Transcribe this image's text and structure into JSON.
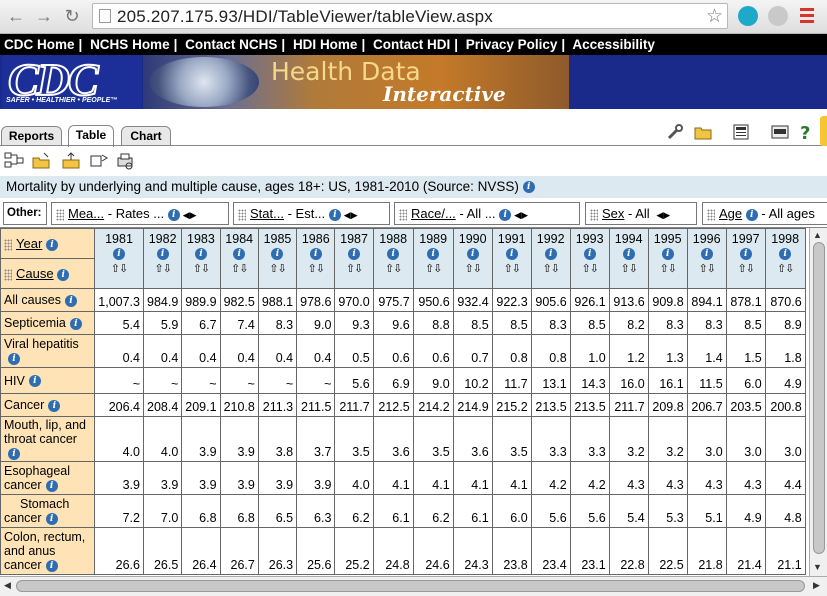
{
  "browser": {
    "url": "205.207.175.93/HDI/TableViewer/tableView.aspx"
  },
  "topnav": [
    "CDC Home",
    "NCHS Home",
    "Contact NCHS",
    "HDI Home",
    "Contact HDI",
    "Privacy Policy",
    "Accessibility"
  ],
  "banner": {
    "logo": "CDC",
    "logo_tagline": "SAFER • HEALTHIER • PEOPLE™",
    "title": "Health Data",
    "subtitle": "Interactive"
  },
  "tabs": [
    "Reports",
    "Table",
    "Chart"
  ],
  "title": "Mortality by underlying and multiple cause, ages 18+: US, 1981-2010 (Source: NVSS)",
  "other": {
    "label": "Other:",
    "dims": [
      {
        "name": "Mea...",
        "value": "Rates ..."
      },
      {
        "name": "Stat...",
        "value": "Est..."
      },
      {
        "name": "Race/...",
        "value": "All ..."
      },
      {
        "name": "Sex",
        "value": "All"
      },
      {
        "name": "Age",
        "value": "All ages"
      }
    ]
  },
  "table": {
    "year_label": "Year",
    "cause_label": "Cause",
    "years": [
      "1981",
      "1982",
      "1983",
      "1984",
      "1985",
      "1986",
      "1987",
      "1988",
      "1989",
      "1990",
      "1991",
      "1992",
      "1993",
      "1994",
      "1995",
      "1996",
      "1997",
      "1998"
    ],
    "rows": [
      {
        "label": "All causes",
        "values": [
          "1,007.3",
          "984.9",
          "989.9",
          "982.5",
          "988.1",
          "978.6",
          "970.0",
          "975.7",
          "950.6",
          "932.4",
          "922.3",
          "905.6",
          "926.1",
          "913.6",
          "909.8",
          "894.1",
          "878.1",
          "870.6"
        ]
      },
      {
        "label": "Septicemia",
        "values": [
          "5.4",
          "5.9",
          "6.7",
          "7.4",
          "8.3",
          "9.0",
          "9.3",
          "9.6",
          "8.8",
          "8.5",
          "8.5",
          "8.3",
          "8.5",
          "8.2",
          "8.3",
          "8.3",
          "8.5",
          "8.9"
        ]
      },
      {
        "label": "Viral hepatitis",
        "values": [
          "0.4",
          "0.4",
          "0.4",
          "0.4",
          "0.4",
          "0.4",
          "0.5",
          "0.6",
          "0.6",
          "0.7",
          "0.8",
          "0.8",
          "1.0",
          "1.2",
          "1.3",
          "1.4",
          "1.5",
          "1.8"
        ]
      },
      {
        "label": "HIV",
        "values": [
          "~",
          "~",
          "~",
          "~",
          "~",
          "~",
          "5.6",
          "6.9",
          "9.0",
          "10.2",
          "11.7",
          "13.1",
          "14.3",
          "16.0",
          "16.1",
          "11.5",
          "6.0",
          "4.9"
        ]
      },
      {
        "label": "Cancer",
        "values": [
          "206.4",
          "208.4",
          "209.1",
          "210.8",
          "211.3",
          "211.5",
          "211.7",
          "212.5",
          "214.2",
          "214.9",
          "215.2",
          "213.5",
          "213.5",
          "211.7",
          "209.8",
          "206.7",
          "203.5",
          "200.8"
        ]
      },
      {
        "label": "Mouth, lip, and throat cancer",
        "values": [
          "4.0",
          "4.0",
          "3.9",
          "3.9",
          "3.8",
          "3.7",
          "3.5",
          "3.6",
          "3.5",
          "3.6",
          "3.5",
          "3.3",
          "3.3",
          "3.2",
          "3.2",
          "3.0",
          "3.0",
          "3.0"
        ]
      },
      {
        "label": "Esophageal cancer",
        "values": [
          "3.9",
          "3.9",
          "3.9",
          "3.9",
          "3.9",
          "3.9",
          "4.0",
          "4.1",
          "4.1",
          "4.1",
          "4.1",
          "4.2",
          "4.2",
          "4.3",
          "4.3",
          "4.3",
          "4.3",
          "4.4"
        ]
      },
      {
        "label": "Stomach cancer",
        "values": [
          "7.2",
          "7.0",
          "6.8",
          "6.8",
          "6.5",
          "6.3",
          "6.2",
          "6.1",
          "6.2",
          "6.1",
          "6.0",
          "5.6",
          "5.6",
          "5.4",
          "5.3",
          "5.1",
          "4.9",
          "4.8"
        ]
      },
      {
        "label": "Colon, rectum, and anus cancer",
        "values": [
          "26.6",
          "26.5",
          "26.4",
          "26.7",
          "26.3",
          "25.6",
          "25.2",
          "24.8",
          "24.6",
          "24.3",
          "23.8",
          "23.4",
          "23.1",
          "22.8",
          "22.5",
          "21.8",
          "21.4",
          "21.1"
        ]
      }
    ]
  }
}
